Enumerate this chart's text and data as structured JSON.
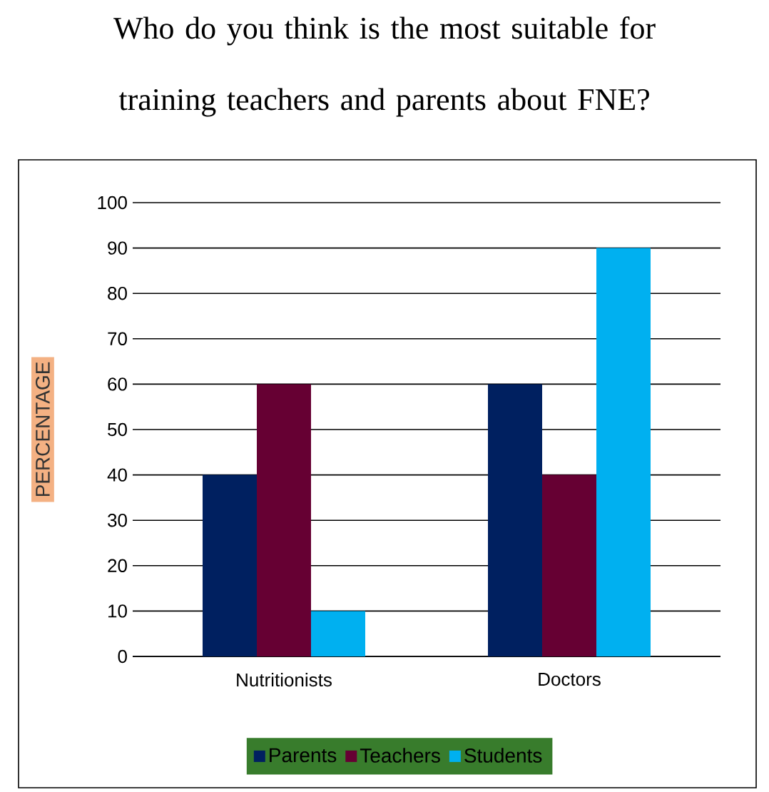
{
  "chart_data": {
    "type": "bar",
    "title": "Who do you think is the most suitable for training teachers and parents about FNE?",
    "ylabel": "PERCENTAGE",
    "categories": [
      "Nutritionists",
      "Doctors"
    ],
    "series": [
      {
        "name": "Parents",
        "color": "#002060",
        "values": [
          40,
          60
        ]
      },
      {
        "name": "Teachers",
        "color": "#660033",
        "values": [
          60,
          40
        ]
      },
      {
        "name": "Students",
        "color": "#00b0f0",
        "values": [
          10,
          90
        ]
      }
    ],
    "ylim": [
      0,
      100
    ],
    "yticks": [
      0,
      10,
      20,
      30,
      40,
      50,
      60,
      70,
      80,
      90,
      100
    ],
    "grid": "y",
    "legend": "bottom"
  }
}
